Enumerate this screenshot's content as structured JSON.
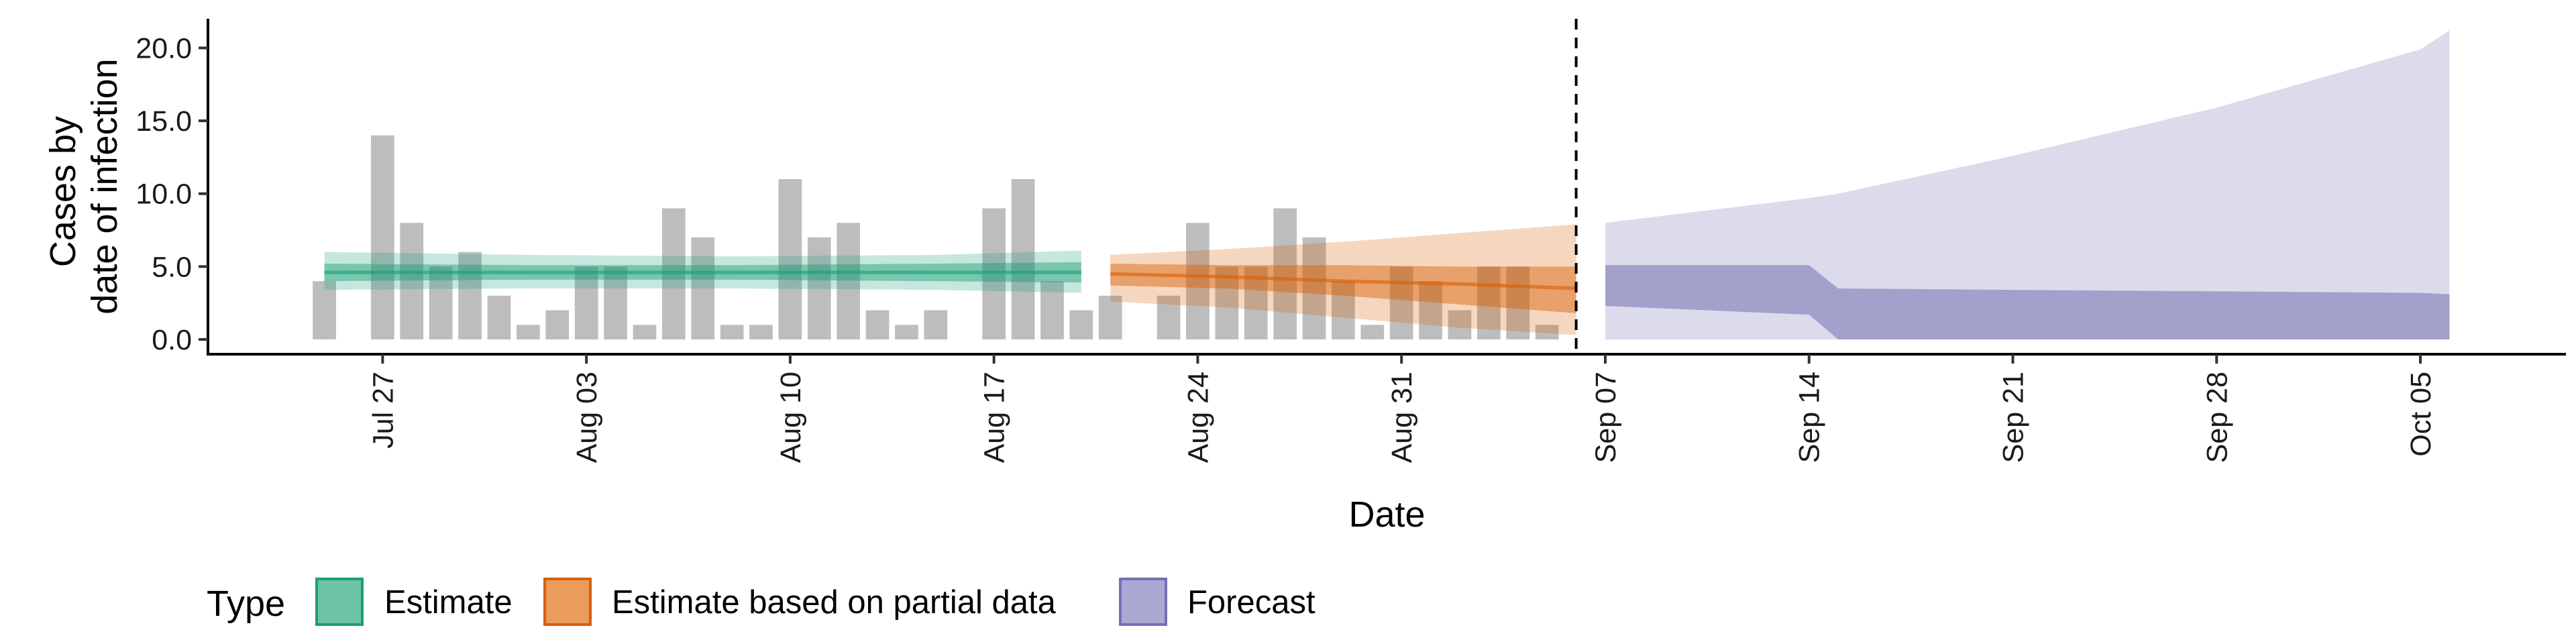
{
  "chart_data": {
    "type": "bar",
    "xlabel": "Date",
    "ylabel": [
      "Cases by",
      "date of infection"
    ],
    "ylim": [
      0,
      22
    ],
    "xlim": [
      "2020-07-21",
      "2020-10-10"
    ],
    "y_ticks": [
      "0.0",
      "5.0",
      "10.0",
      "15.0",
      "20.0"
    ],
    "x_ticks": [
      {
        "date": "2020-07-27",
        "label": "Jul 27"
      },
      {
        "date": "2020-08-03",
        "label": "Aug 03"
      },
      {
        "date": "2020-08-10",
        "label": "Aug 10"
      },
      {
        "date": "2020-08-17",
        "label": "Aug 17"
      },
      {
        "date": "2020-08-24",
        "label": "Aug 24"
      },
      {
        "date": "2020-08-31",
        "label": "Aug 31"
      },
      {
        "date": "2020-09-07",
        "label": "Sep 07"
      },
      {
        "date": "2020-09-14",
        "label": "Sep 14"
      },
      {
        "date": "2020-09-21",
        "label": "Sep 21"
      },
      {
        "date": "2020-09-28",
        "label": "Sep 28"
      },
      {
        "date": "2020-10-05",
        "label": "Oct 05"
      }
    ],
    "vline_date": "2020-09-06",
    "grid": false,
    "legend_position": "bottom-left",
    "reported_cases": {
      "start_date": "2020-07-25",
      "values": [
        4,
        0,
        14,
        8,
        5,
        6,
        3,
        1,
        2,
        5,
        5,
        1,
        9,
        7,
        1,
        1,
        11,
        7,
        8,
        2,
        1,
        2,
        0,
        9,
        11,
        4,
        2,
        3,
        0,
        3,
        8,
        5,
        5,
        9,
        7,
        4,
        1,
        5,
        4,
        2,
        5,
        5,
        1
      ]
    },
    "series": [
      {
        "name": "Estimate",
        "color": "#1b9e77",
        "dates": [
          "2020-07-25",
          "2020-08-01",
          "2020-08-08",
          "2020-08-15",
          "2020-08-20"
        ],
        "median": [
          4.6,
          4.6,
          4.6,
          4.6,
          4.6
        ],
        "lower_50": [
          4.0,
          4.1,
          4.1,
          4.0,
          3.9
        ],
        "upper_50": [
          5.2,
          5.1,
          5.1,
          5.2,
          5.3
        ],
        "lower_90": [
          3.4,
          3.5,
          3.5,
          3.4,
          3.2
        ],
        "upper_90": [
          6.0,
          5.8,
          5.7,
          5.8,
          6.1
        ]
      },
      {
        "name": "Estimate based on partial data",
        "color": "#d95f02",
        "dates": [
          "2020-08-21",
          "2020-08-25",
          "2020-08-29",
          "2020-09-02",
          "2020-09-06"
        ],
        "median": [
          4.5,
          4.3,
          4.0,
          3.8,
          3.5
        ],
        "lower_50": [
          3.7,
          3.5,
          3.0,
          2.4,
          1.8
        ],
        "upper_50": [
          5.2,
          5.1,
          5.1,
          5.0,
          5.0
        ],
        "lower_90": [
          2.6,
          2.2,
          1.5,
          0.8,
          0.3
        ],
        "upper_90": [
          5.8,
          6.2,
          6.7,
          7.3,
          7.9
        ]
      },
      {
        "name": "Forecast",
        "color": "#7570b3",
        "dates": [
          "2020-09-07",
          "2020-09-14",
          "2020-09-15",
          "2020-09-21",
          "2020-09-28",
          "2020-10-05",
          "2020-10-06"
        ],
        "lower_50": [
          2.3,
          1.7,
          0.0,
          0.0,
          0.0,
          0.0,
          0.0
        ],
        "upper_50": [
          5.1,
          5.1,
          3.5,
          3.4,
          3.3,
          3.2,
          3.1
        ],
        "lower_90": [
          0.0,
          0.0,
          0.0,
          0.0,
          0.0,
          0.0,
          0.0
        ],
        "upper_90": [
          8.0,
          9.7,
          10.0,
          12.6,
          15.9,
          19.9,
          21.2
        ]
      }
    ],
    "legend": {
      "title": "Type",
      "entries": [
        {
          "label": "Estimate",
          "fill": "#6cc2a5",
          "stroke": "#1b9e77"
        },
        {
          "label": "Estimate based on partial data",
          "fill": "#eb9b5c",
          "stroke": "#d95f02"
        },
        {
          "label": "Forecast",
          "fill": "#aba8d4",
          "stroke": "#7570b3"
        }
      ]
    }
  }
}
